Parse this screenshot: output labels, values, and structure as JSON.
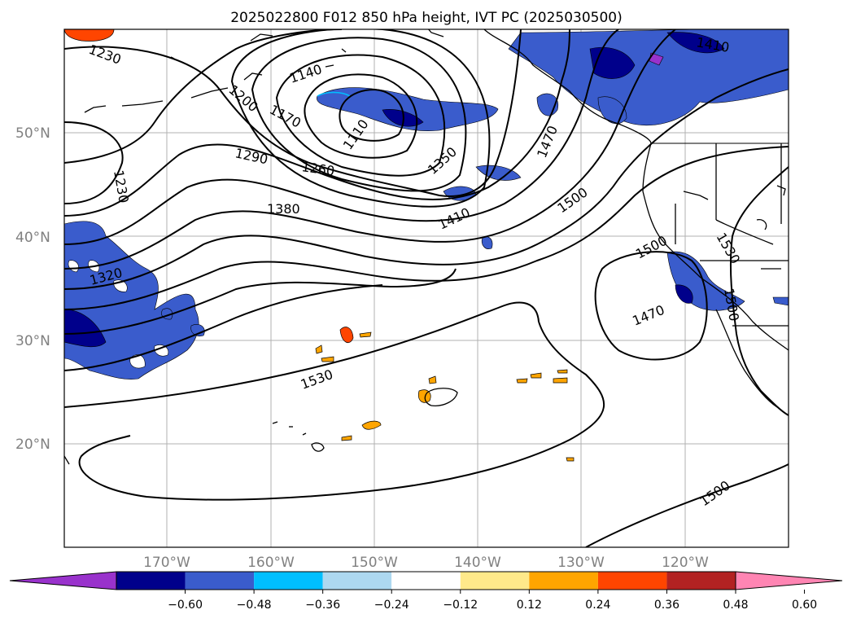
{
  "title": "2025022800 F012 850 hPa height, IVT PC (2025030500)",
  "map": {
    "lat_labels": [
      "50°N",
      "40°N",
      "30°N",
      "20°N"
    ],
    "lon_labels": [
      "170°W",
      "160°W",
      "150°W",
      "140°W",
      "130°W",
      "120°W"
    ],
    "grid": true,
    "contour_color": "#000000",
    "contour_labels": [
      "1230",
      "1140",
      "1200",
      "1170",
      "1110",
      "1290",
      "1260",
      "1350",
      "1470",
      "1410",
      "1230",
      "1380",
      "1410",
      "1500",
      "1320",
      "1500",
      "1530",
      "1470",
      "1500",
      "1530",
      "1500"
    ]
  },
  "colorbar": {
    "ticks": [
      "−0.60",
      "−0.48",
      "−0.36",
      "−0.24",
      "−0.12",
      "0.12",
      "0.24",
      "0.36",
      "0.48",
      "0.60"
    ],
    "colors": [
      "#9932cc",
      "#00008b",
      "#3a5ccc",
      "#00bfff",
      "#add8f0",
      "#ffffff",
      "#ffe98a",
      "#ffa500",
      "#ff4500",
      "#b22222",
      "#ff85b3"
    ],
    "extend": "both"
  }
}
